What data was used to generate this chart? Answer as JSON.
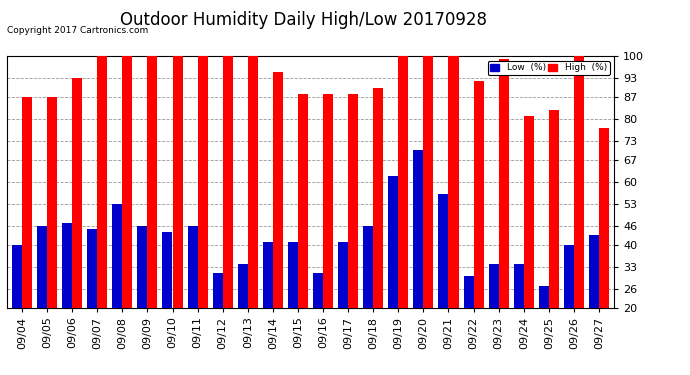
{
  "title": "Outdoor Humidity Daily High/Low 20170928",
  "copyright": "Copyright 2017 Cartronics.com",
  "categories": [
    "09/04",
    "09/05",
    "09/06",
    "09/07",
    "09/08",
    "09/09",
    "09/10",
    "09/11",
    "09/12",
    "09/13",
    "09/14",
    "09/15",
    "09/16",
    "09/17",
    "09/18",
    "09/19",
    "09/20",
    "09/21",
    "09/22",
    "09/23",
    "09/24",
    "09/25",
    "09/26",
    "09/27"
  ],
  "high_values": [
    87,
    87,
    93,
    100,
    100,
    100,
    100,
    100,
    100,
    100,
    95,
    88,
    88,
    88,
    90,
    100,
    100,
    100,
    92,
    99,
    81,
    83,
    100,
    77
  ],
  "low_values": [
    40,
    46,
    47,
    45,
    53,
    46,
    44,
    46,
    31,
    34,
    41,
    41,
    31,
    41,
    46,
    62,
    70,
    56,
    30,
    34,
    34,
    27,
    40,
    43
  ],
  "high_color": "#ff0000",
  "low_color": "#0000cc",
  "bg_color": "#ffffff",
  "plot_bg_color": "#ffffff",
  "grid_color": "#999999",
  "ylim": [
    20,
    100
  ],
  "yticks": [
    20,
    26,
    33,
    40,
    46,
    53,
    60,
    67,
    73,
    80,
    87,
    93,
    100
  ],
  "bar_width": 0.4,
  "title_fontsize": 12,
  "tick_fontsize": 8,
  "legend_labels": [
    "Low  (%)",
    "High  (%)"
  ],
  "legend_colors": [
    "#0000cc",
    "#ff0000"
  ]
}
